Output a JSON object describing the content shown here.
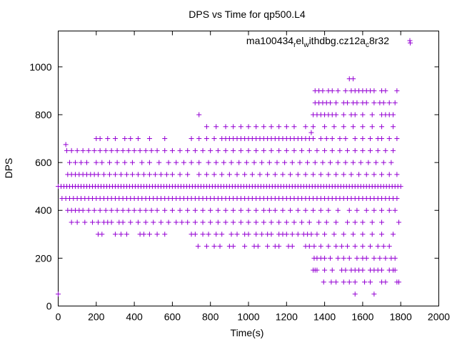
{
  "chart_data": {
    "type": "scatter",
    "title": "DPS vs Time for qp500.L4",
    "xlabel": "Time(s)",
    "ylabel": "DPS",
    "xlim": [
      0,
      2000
    ],
    "ylim": [
      0,
      1150
    ],
    "xticks": [
      "0",
      "200",
      "400",
      "600",
      "800",
      "1000",
      "1200",
      "1400",
      "1600",
      "1800",
      "2000"
    ],
    "yticks": [
      "0",
      "200",
      "400",
      "600",
      "800",
      "1000"
    ],
    "grid": false,
    "legend_position": "top-right",
    "series": [
      {
        "name": "ma100434_rel_withdbg.cz12a_c8r32",
        "name_parts": {
          "p1": "ma100434",
          "p2": "r",
          "p3": "el",
          "p4": "w",
          "p5": "ithdbg.cz12a",
          "p6": "c",
          "p7": "8r32"
        },
        "color": "#9400d3",
        "marker": "plus",
        "bands": [
          {
            "y": 50,
            "x": [
              0,
              1560,
              1660
            ]
          },
          {
            "y": 100,
            "x": [
              1395,
              1435,
              1460,
              1500,
              1530,
              1560,
              1610,
              1640,
              1700,
              1720,
              1780,
              1790
            ]
          },
          {
            "y": 150,
            "x": [
              1340,
              1350,
              1360,
              1400,
              1440,
              1490,
              1510,
              1540,
              1560,
              1580,
              1600,
              1640,
              1660,
              1680,
              1700,
              1740,
              1760,
              1770
            ]
          },
          {
            "y": 200,
            "x": [
              1345,
              1360,
              1380,
              1400,
              1430,
              1470,
              1500,
              1530,
              1570,
              1600,
              1620,
              1660,
              1690,
              1720,
              1750,
              1770
            ]
          },
          {
            "y": 250,
            "x": [
              735,
              780,
              820,
              850,
              900,
              920,
              980,
              1030,
              1050,
              1100,
              1140,
              1160,
              1210,
              1230,
              1300,
              1320,
              1345,
              1380,
              1420,
              1460,
              1490,
              1520,
              1560,
              1600,
              1640,
              1680,
              1710,
              1740
            ]
          },
          {
            "y": 300,
            "x": [
              210,
              230,
              300,
              330,
              360,
              430,
              450,
              480,
              520,
              560,
              700,
              720,
              760,
              790,
              830,
              860,
              910,
              940,
              980,
              1000,
              1040,
              1070,
              1100,
              1120,
              1160,
              1180,
              1200,
              1230,
              1260,
              1290,
              1310,
              1330,
              1360,
              1400,
              1450,
              1500,
              1550,
              1600,
              1650,
              1700,
              1760
            ]
          },
          {
            "y": 350,
            "x": [
              70,
              100,
              140,
              180,
              210,
              240,
              260,
              280,
              320,
              340,
              380,
              420,
              460,
              500,
              540,
              580,
              620,
              650,
              680,
              720,
              760,
              800,
              840,
              880,
              920,
              960,
              1000,
              1040,
              1080,
              1120,
              1160,
              1200,
              1240,
              1280,
              1320,
              1370,
              1410,
              1460,
              1520,
              1560,
              1600,
              1650,
              1700,
              1790
            ]
          },
          {
            "y": 400,
            "x": [
              50,
              70,
              90,
              110,
              130,
              160,
              190,
              220,
              250,
              280,
              310,
              340,
              370,
              400,
              430,
              460,
              490,
              520,
              560,
              600,
              640,
              680,
              720,
              760,
              800,
              840,
              880,
              920,
              960,
              1000,
              1040,
              1080,
              1110,
              1140,
              1180,
              1220,
              1260,
              1300,
              1340,
              1380,
              1420,
              1470,
              1530,
              1570,
              1620,
              1660,
              1700,
              1740,
              1770
            ]
          },
          {
            "y": 450,
            "x": [
              20,
              40,
              60,
              80,
              100,
              120,
              140,
              160,
              180,
              200,
              220,
              240,
              260,
              280,
              300,
              320,
              340,
              360,
              380,
              400,
              420,
              440,
              460,
              480,
              500,
              520,
              540,
              560,
              580,
              600,
              620,
              640,
              660,
              680,
              700,
              720,
              740,
              760,
              780,
              800,
              820,
              840,
              860,
              880,
              900,
              920,
              940,
              960,
              980,
              1000,
              1020,
              1040,
              1060,
              1080,
              1100,
              1120,
              1140,
              1160,
              1180,
              1200,
              1220,
              1240,
              1260,
              1280,
              1300,
              1320,
              1340,
              1360,
              1380,
              1400,
              1420,
              1440,
              1460,
              1480,
              1500,
              1520,
              1540,
              1560,
              1580,
              1600,
              1620,
              1640,
              1660,
              1680,
              1700,
              1720,
              1740,
              1760,
              1780
            ]
          },
          {
            "y": 500,
            "x": [
              0,
              15,
              30,
              45,
              60,
              75,
              90,
              105,
              120,
              135,
              150,
              165,
              180,
              195,
              210,
              225,
              240,
              255,
              270,
              285,
              300,
              315,
              330,
              345,
              360,
              375,
              390,
              405,
              420,
              435,
              450,
              465,
              480,
              495,
              510,
              525,
              540,
              555,
              570,
              585,
              600,
              615,
              630,
              645,
              660,
              675,
              690,
              705,
              720,
              735,
              750,
              765,
              780,
              795,
              810,
              825,
              840,
              855,
              870,
              885,
              900,
              915,
              930,
              945,
              960,
              975,
              990,
              1005,
              1020,
              1035,
              1050,
              1065,
              1080,
              1095,
              1110,
              1125,
              1140,
              1155,
              1170,
              1185,
              1200,
              1215,
              1230,
              1245,
              1260,
              1275,
              1290,
              1305,
              1320,
              1335,
              1350,
              1365,
              1380,
              1395,
              1410,
              1425,
              1440,
              1455,
              1470,
              1485,
              1500,
              1515,
              1530,
              1545,
              1560,
              1575,
              1590,
              1605,
              1620,
              1635,
              1650,
              1665,
              1680,
              1695,
              1710,
              1725,
              1740,
              1755,
              1770,
              1785,
              1800
            ]
          },
          {
            "y": 550,
            "x": [
              50,
              70,
              90,
              110,
              130,
              150,
              170,
              190,
              210,
              240,
              270,
              300,
              330,
              360,
              390,
              420,
              450,
              480,
              510,
              540,
              570,
              600,
              640,
              680,
              740,
              780,
              820,
              860,
              900,
              940,
              980,
              1020,
              1060,
              1100,
              1140,
              1180,
              1220,
              1260,
              1300,
              1340,
              1380,
              1420,
              1460,
              1500,
              1540,
              1580,
              1620,
              1660,
              1700,
              1740,
              1780
            ]
          },
          {
            "y": 600,
            "x": [
              60,
              90,
              120,
              150,
              200,
              230,
              270,
              310,
              350,
              390,
              440,
              480,
              530,
              580,
              620,
              660,
              700,
              740,
              790,
              830,
              870,
              910,
              950,
              990,
              1030,
              1070,
              1110,
              1150,
              1190,
              1230,
              1270,
              1310,
              1350,
              1390,
              1430,
              1470,
              1510,
              1550,
              1590,
              1630,
              1670,
              1710,
              1750
            ]
          },
          {
            "y": 650,
            "x": [
              45,
              70,
              100,
              130,
              160,
              190,
              220,
              250,
              280,
              310,
              340,
              370,
              400,
              430,
              460,
              490,
              520,
              560,
              600,
              640,
              680,
              720,
              760,
              800,
              840,
              880,
              920,
              960,
              1000,
              1040,
              1080,
              1120,
              1160,
              1200,
              1240,
              1280,
              1320,
              1360,
              1400,
              1440,
              1480,
              1520,
              1560,
              1600,
              1640,
              1680,
              1720,
              1760
            ]
          },
          {
            "y": 675,
            "x": [
              40
            ]
          },
          {
            "y": 700,
            "x": [
              200,
              220,
              260,
              300,
              350,
              380,
              420,
              480,
              560,
              700,
              740,
              780,
              820,
              860,
              880,
              900,
              920,
              940,
              960,
              980,
              1000,
              1020,
              1040,
              1060,
              1080,
              1100,
              1120,
              1140,
              1160,
              1180,
              1200,
              1220,
              1240,
              1260,
              1280,
              1300,
              1320,
              1340,
              1380,
              1410,
              1440,
              1480,
              1510,
              1560,
              1600,
              1640,
              1680,
              1700,
              1740,
              1780
            ]
          },
          {
            "y": 725,
            "x": [
              1330
            ]
          },
          {
            "y": 750,
            "x": [
              780,
              830,
              880,
              920,
              960,
              1000,
              1040,
              1080,
              1120,
              1160,
              1200,
              1240,
              1300,
              1340,
              1400,
              1450,
              1500,
              1550,
              1600,
              1650,
              1700,
              1760
            ]
          },
          {
            "y": 800,
            "x": [
              740,
              1340,
              1360,
              1380,
              1400,
              1420,
              1440,
              1460,
              1500,
              1540,
              1560,
              1600,
              1650,
              1700,
              1720,
              1740,
              1760
            ]
          },
          {
            "y": 850,
            "x": [
              1350,
              1370,
              1390,
              1410,
              1430,
              1460,
              1500,
              1520,
              1550,
              1570,
              1600,
              1620,
              1660,
              1690,
              1710,
              1740,
              1770
            ]
          },
          {
            "y": 900,
            "x": [
              1350,
              1370,
              1390,
              1420,
              1440,
              1470,
              1510,
              1540,
              1560,
              1580,
              1600,
              1620,
              1640,
              1660,
              1700,
              1720,
              1780
            ]
          },
          {
            "y": 950,
            "x": [
              1530,
              1550
            ]
          },
          {
            "y": 1100,
            "x": [
              1850
            ]
          }
        ]
      }
    ]
  }
}
